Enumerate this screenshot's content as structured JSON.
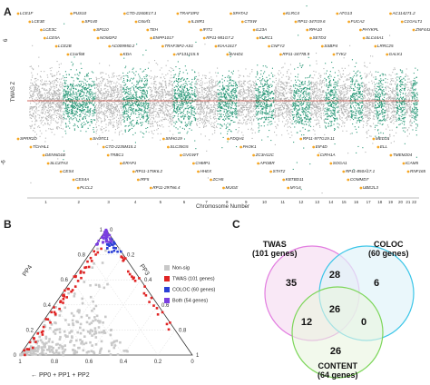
{
  "panels": {
    "a": {
      "letter": "A"
    },
    "b": {
      "letter": "B"
    },
    "c": {
      "letter": "C"
    }
  },
  "chart_data": [
    {
      "type": "scatter",
      "panel": "A",
      "title": "",
      "xlabel": "Chromosome Number",
      "ylabel": "TWAS Z",
      "ylim": [
        -6,
        7
      ],
      "ytick_labels": [
        "6",
        "-6"
      ],
      "chromosomes": [
        "1",
        "2",
        "3",
        "4",
        "5",
        "6",
        "7",
        "8",
        "9",
        "10",
        "11",
        "12",
        "13",
        "14",
        "15",
        "16",
        "17",
        "18",
        "19",
        "20",
        "21",
        "22"
      ],
      "colors": {
        "odd": "#b5b5b5",
        "even": "#2e9a7a",
        "threshold": "#c0392b",
        "highlight": "#f5a623"
      },
      "genes_top": [
        "LCE1F",
        "LCE3E",
        "LCE3C",
        "LCE5A",
        "LCE2B",
        "C1orf68",
        "PUS10",
        "SP140",
        "SP110",
        "NOM2P2",
        "AC009950.2",
        "KDA",
        "CTD-2260E17.1",
        "C6orf1",
        "TEH",
        "ENPP1017",
        "TRAF3IP2-AS1",
        "AF131215.5",
        "TRAF3IP2",
        "IL18R1",
        "IFIT1",
        "RP11-981G7.2",
        "KIAA1617",
        "BAHD1",
        "SPATA2",
        "CTSW",
        "IL23A",
        "KLRC1",
        "CNFY2",
        "RP11-3477B.9",
        "KLRC4",
        "RP11-347I19.6",
        "RPA10",
        "SETD3",
        "SSBP4",
        "TYK2",
        "ATG13",
        "FUCA2",
        "PHYKPL",
        "SLC44A1",
        "LRRC25",
        "GALK1",
        "AC114271.2",
        "C1GALT1",
        "ZNF443"
      ],
      "genes_bottom": [
        "SPRR2D",
        "TCHHL1",
        "DENND1B",
        "SLC37A3",
        "CES4",
        "CES4A",
        "PLCL2",
        "SH3TC1",
        "CTD-2235M15.1",
        "TRBC1",
        "ERAP1",
        "RP11-175K6.2",
        "IRF5",
        "RP11-297N6.4",
        "SNHG19",
        "SLC35G5",
        "GVGWT",
        "CHMP1",
        "HHEX",
        "ZCH5",
        "MUGE",
        "FDQH1",
        "PAOK1",
        "ZC3H12C",
        "APOBR",
        "STAT2",
        "KBTBD11",
        "MYL6",
        "RP11-977G19.11",
        "EIF4D",
        "CIRH1A",
        "SOGA1",
        "RP11-850A17.1",
        "COMMD7",
        "UBE2L3",
        "MED15",
        "ELL",
        "TMEM204",
        "ICAM5",
        "RNF165"
      ]
    },
    {
      "type": "scatter",
      "panel": "B",
      "title": "",
      "subtype": "ternary",
      "axis_labels": {
        "left": "PP4",
        "right": "PP3",
        "bottom": "PP0 + PP1 + PP2"
      },
      "tick_labels": [
        "0",
        "0.2",
        "0.4",
        "0.6",
        "0.8",
        "1"
      ],
      "series": [
        {
          "name": "Non-sig",
          "color": "#c8c8c8"
        },
        {
          "name": "TWAS (101 genes)",
          "color": "#e02424"
        },
        {
          "name": "COLOC (60 genes)",
          "color": "#2b3fd6"
        },
        {
          "name": "Both (54 genes)",
          "color": "#7b3fe0"
        }
      ]
    }
  ],
  "venn": {
    "sets": [
      {
        "name": "TWAS",
        "count_label": "(101 genes)",
        "color": "#e27de0",
        "fill": "#f6def2"
      },
      {
        "name": "COLOC",
        "count_label": "(60 genes)",
        "color": "#3cc6e8",
        "fill": "#e1f4fa"
      },
      {
        "name": "CONTENT",
        "count_label": "(64 genes)",
        "color": "#7dd65a",
        "fill": "#e9f5df"
      }
    ],
    "regions": {
      "twas_only": "35",
      "coloc_only": "6",
      "content_only": "26",
      "twas_coloc": "28",
      "twas_content": "12",
      "coloc_content": "0",
      "all": "26"
    }
  }
}
